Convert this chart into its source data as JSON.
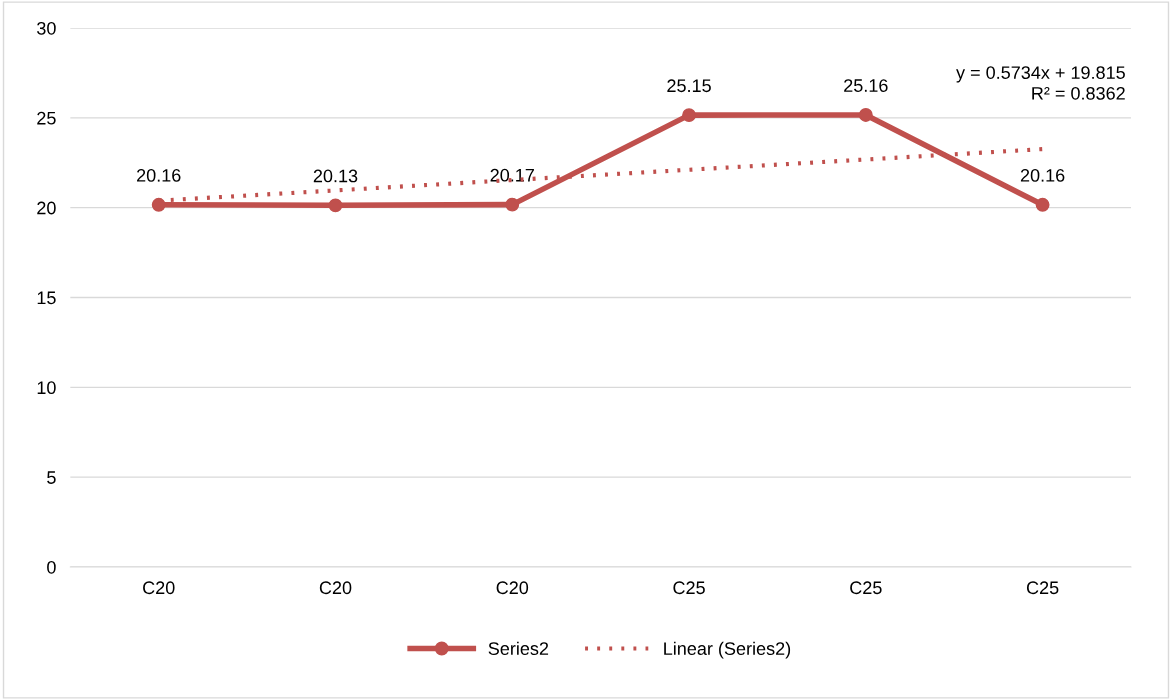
{
  "chart_data": {
    "type": "line",
    "categories": [
      "C20",
      "C20",
      "C20",
      "C25",
      "C25",
      "C25"
    ],
    "series": [
      {
        "name": "Series2",
        "color": "#c0504d",
        "values": [
          20.16,
          20.13,
          20.17,
          25.15,
          25.16,
          20.16
        ],
        "marker": "circle",
        "line_style": "solid",
        "value_labels": [
          "20.16",
          "20.13",
          "20.17",
          "25.15",
          "25.16",
          "20.16"
        ]
      },
      {
        "name": "Linear (Series2)",
        "color": "#c0504d",
        "values": [
          20.39,
          20.96,
          21.54,
          22.11,
          22.68,
          23.26
        ],
        "marker": "none",
        "line_style": "dotted"
      }
    ],
    "ylim": [
      0,
      30
    ],
    "yticks": [
      0,
      5,
      10,
      15,
      20,
      25,
      30
    ],
    "grid": "y",
    "legend": "bottom",
    "annotations": [
      "y = 0.5734x + 19.815",
      "R² = 0.8362"
    ]
  }
}
